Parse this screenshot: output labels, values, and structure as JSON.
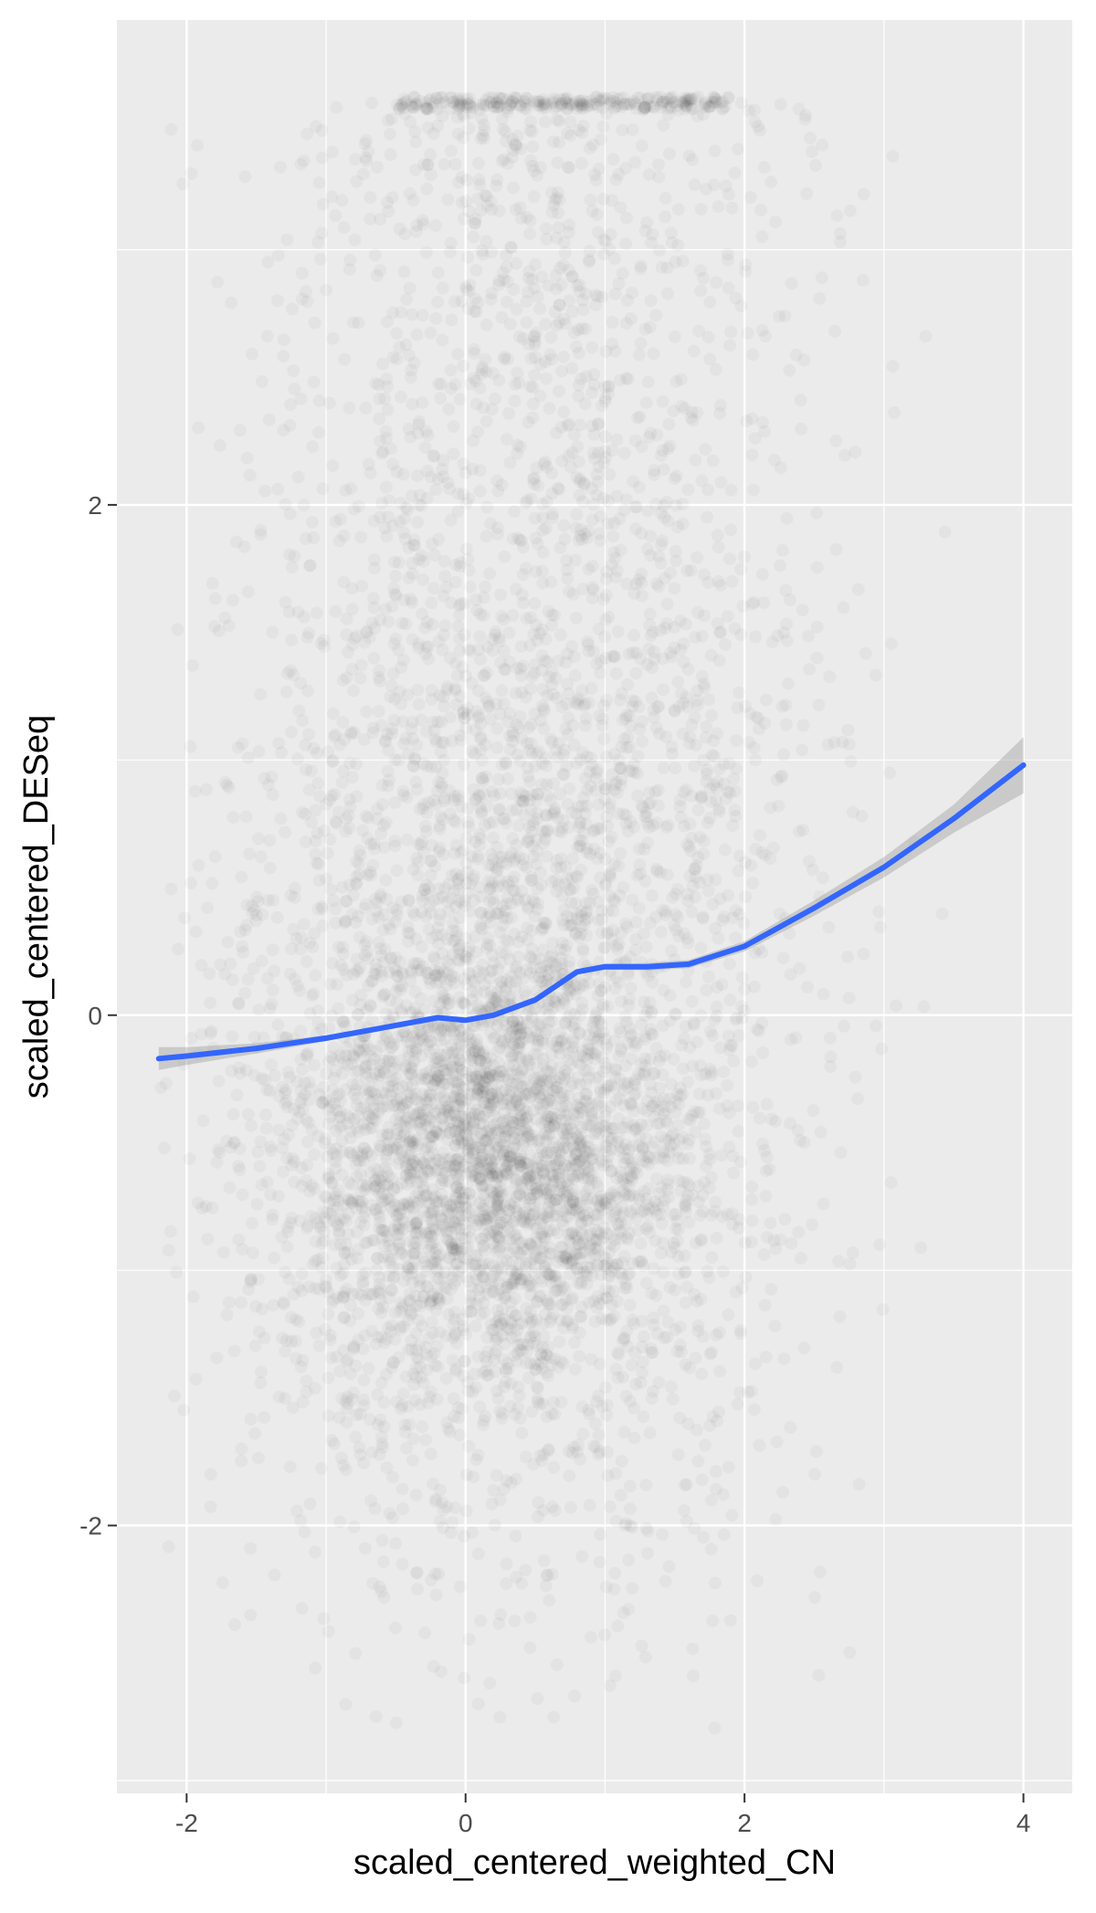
{
  "chart_data": {
    "type": "scatter",
    "xlabel": "scaled_centered_weighted_CN",
    "ylabel": "scaled_centered_DESeq",
    "xlim": [
      -2.5,
      4.35
    ],
    "ylim": [
      -3.05,
      3.9
    ],
    "x_ticks": [
      -2,
      0,
      2,
      4
    ],
    "x_tick_labels": [
      "-2",
      "0",
      "2",
      "4"
    ],
    "y_ticks": [
      -2,
      0,
      2
    ],
    "y_tick_labels": [
      "-2",
      "0",
      "2"
    ],
    "grid": true,
    "panel_background": "#ebebeb",
    "point_color": "#000000",
    "point_alpha": 0.03,
    "point_cloud": {
      "x_range": [
        -2.2,
        3.5
      ],
      "y_range": [
        -2.8,
        3.6
      ],
      "dense_core": {
        "x": [
          -1.2,
          1.6
        ],
        "y": [
          -1.1,
          0.2
        ]
      }
    },
    "series": [
      {
        "type": "smooth",
        "color": "#3366ff",
        "ribbon_color": "#999999",
        "x": [
          -2.2,
          -2.0,
          -1.5,
          -1.0,
          -0.5,
          -0.2,
          0.0,
          0.2,
          0.5,
          0.8,
          1.0,
          1.3,
          1.6,
          2.0,
          2.5,
          3.0,
          3.5,
          4.0
        ],
        "y": [
          -0.17,
          -0.16,
          -0.13,
          -0.09,
          -0.04,
          -0.01,
          -0.02,
          0.0,
          0.06,
          0.17,
          0.19,
          0.19,
          0.2,
          0.27,
          0.42,
          0.58,
          0.77,
          0.98
        ],
        "se": [
          0.045,
          0.035,
          0.02,
          0.012,
          0.008,
          0.006,
          0.006,
          0.006,
          0.008,
          0.01,
          0.012,
          0.014,
          0.016,
          0.02,
          0.03,
          0.04,
          0.055,
          0.11
        ]
      }
    ]
  }
}
